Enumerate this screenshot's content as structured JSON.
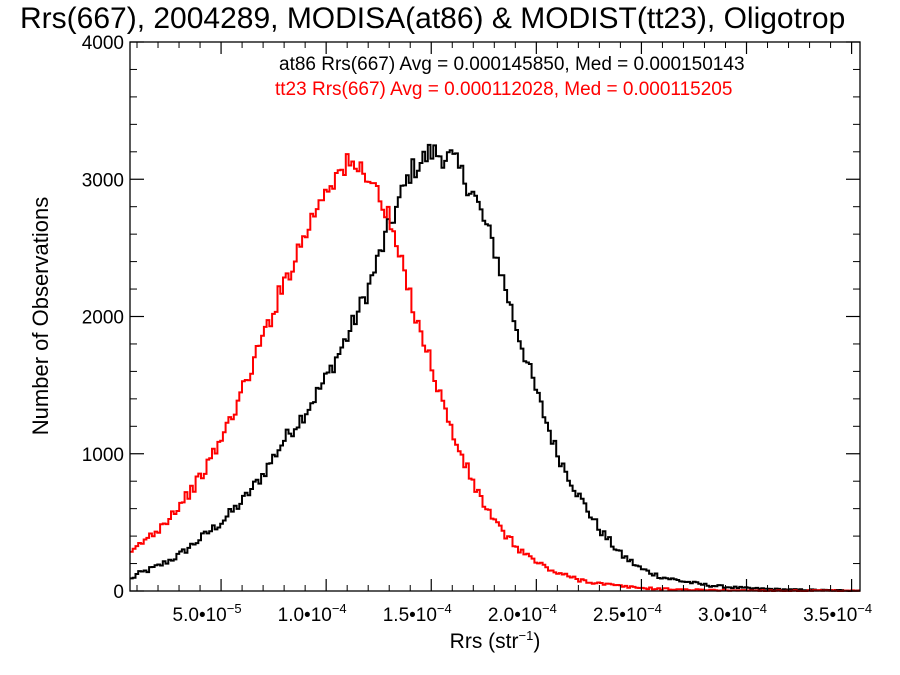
{
  "chart_data": {
    "type": "line",
    "title": "Rrs(667), 2004289, MODISA(at86) & MODIST(tt23), Oligotrop",
    "xlabel_main": "Rrs (str",
    "xlabel_sup": "−1",
    "xlabel_end": ")",
    "ylabel": "Number of Observations",
    "xlim": [
      6.67e-06,
      0.000354
    ],
    "ylim": [
      0,
      4000
    ],
    "x_ticks": [
      {
        "value": 5e-05,
        "mantissa": "5.0•10",
        "exponent": "−5"
      },
      {
        "value": 0.0001,
        "mantissa": "1.0•10",
        "exponent": "−4"
      },
      {
        "value": 0.00015,
        "mantissa": "1.5•10",
        "exponent": "−4"
      },
      {
        "value": 0.0002,
        "mantissa": "2.0•10",
        "exponent": "−4"
      },
      {
        "value": 0.00025,
        "mantissa": "2.5•10",
        "exponent": "−4"
      },
      {
        "value": 0.0003,
        "mantissa": "3.0•10",
        "exponent": "−4"
      },
      {
        "value": 0.00035,
        "mantissa": "3.5•10",
        "exponent": "−4"
      }
    ],
    "y_ticks": [
      {
        "value": 0,
        "label": "0"
      },
      {
        "value": 1000,
        "label": "1000"
      },
      {
        "value": 2000,
        "label": "2000"
      },
      {
        "value": 3000,
        "label": "3000"
      },
      {
        "value": 4000,
        "label": "4000"
      }
    ],
    "annotations": [
      {
        "text": "at86 Rrs(667) Avg = 0.000145850, Med = 0.000150143",
        "color": "#000000"
      },
      {
        "text": "tt23 Rrs(667) Avg = 0.000112028, Med = 0.000115205",
        "color": "#ff0000"
      }
    ],
    "series": [
      {
        "color": "#000000",
        "x": [
          6.7e-06,
          1e-05,
          2e-05,
          3e-05,
          4e-05,
          5e-05,
          6e-05,
          7e-05,
          8e-05,
          9e-05,
          0.0001,
          0.00011,
          0.00012,
          0.00013,
          0.00014,
          0.00015,
          0.00016,
          0.00017,
          0.00018,
          0.00019,
          0.0002,
          0.00021,
          0.00022,
          0.00023,
          0.00024,
          0.00025,
          0.00026,
          0.00027,
          0.00028,
          0.00029,
          0.0003,
          0.00031,
          0.00032,
          0.00033,
          0.00034,
          0.000354
        ],
        "y": [
          80,
          120,
          180,
          260,
          380,
          500,
          650,
          850,
          1100,
          1300,
          1550,
          1850,
          2200,
          2650,
          3050,
          3200,
          3150,
          2900,
          2500,
          1950,
          1450,
          1000,
          700,
          450,
          270,
          160,
          100,
          70,
          45,
          30,
          20,
          15,
          10,
          8,
          5,
          3
        ]
      },
      {
        "color": "#ff0000",
        "x": [
          6.7e-06,
          1e-05,
          2e-05,
          3e-05,
          4e-05,
          5e-05,
          6e-05,
          7e-05,
          8e-05,
          9e-05,
          0.0001,
          0.00011,
          0.00012,
          0.00013,
          0.00014,
          0.00015,
          0.00016,
          0.00017,
          0.00018,
          0.00019,
          0.0002,
          0.00021,
          0.00022,
          0.00023,
          0.00024,
          0.00025,
          0.00026,
          0.00027,
          0.00028,
          0.00029,
          0.0003,
          0.00031,
          0.00032,
          0.00033,
          0.00034,
          0.000354
        ],
        "y": [
          250,
          320,
          450,
          620,
          820,
          1100,
          1450,
          1850,
          2250,
          2600,
          2950,
          3100,
          3050,
          2700,
          2150,
          1650,
          1150,
          780,
          500,
          330,
          210,
          130,
          85,
          55,
          35,
          22,
          15,
          10,
          7,
          5,
          4,
          3,
          2,
          2,
          1,
          1
        ]
      }
    ]
  }
}
